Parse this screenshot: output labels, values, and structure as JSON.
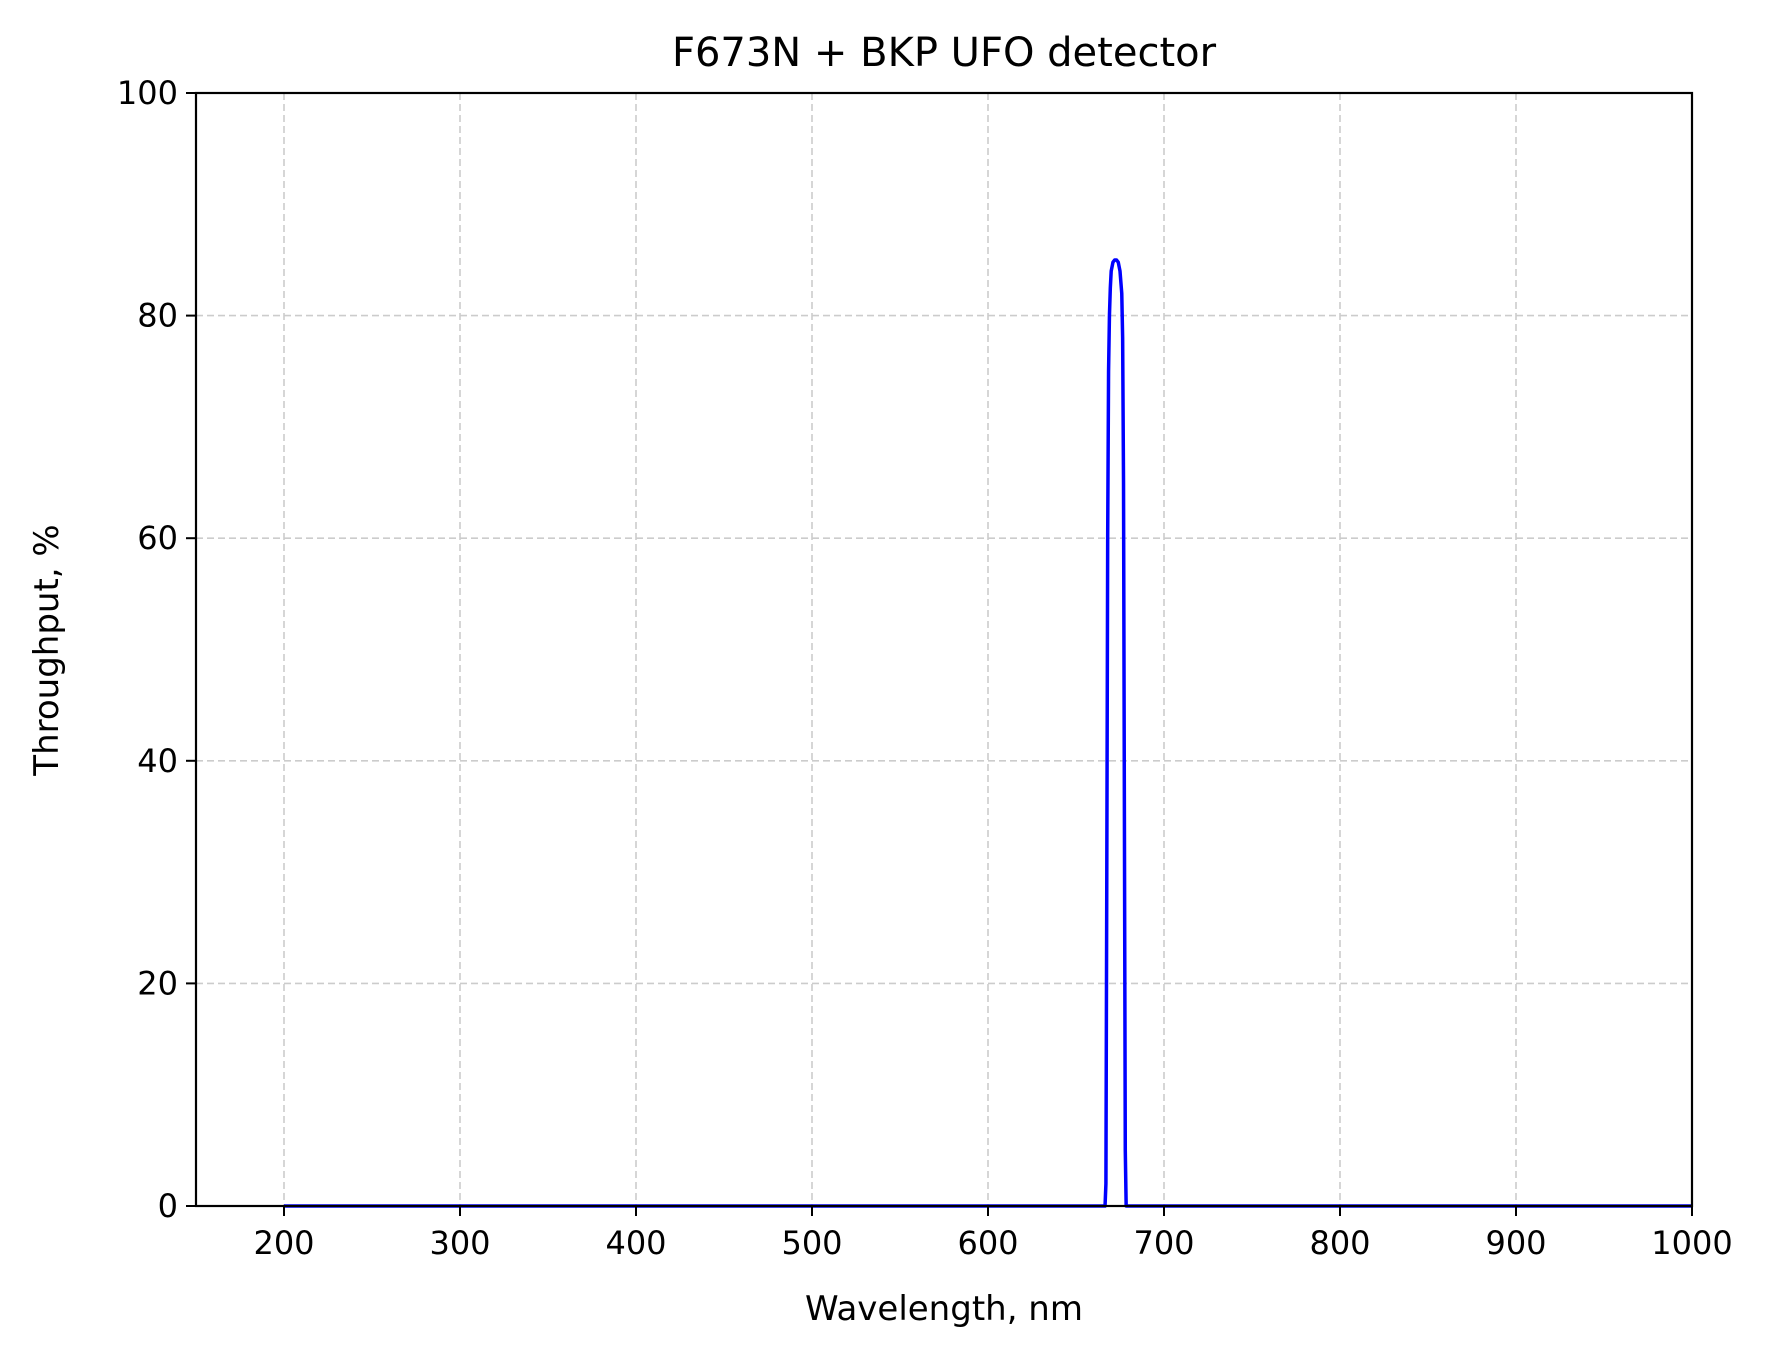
{
  "chart_data": {
    "type": "line",
    "title": "F673N + BKP UFO detector",
    "xlabel": "Wavelength, nm",
    "ylabel": "Throughput, %",
    "xlim": [
      150,
      1000
    ],
    "ylim": [
      0,
      100
    ],
    "xticks": [
      200,
      300,
      400,
      500,
      600,
      700,
      800,
      900,
      1000
    ],
    "yticks": [
      0,
      20,
      40,
      60,
      80,
      100
    ],
    "grid": true,
    "legend": "none",
    "line_color": "#0000ff",
    "grid_color": "#cccccc",
    "series": [
      {
        "x": [
          200,
          300,
          400,
          500,
          600,
          660,
          665,
          666.5,
          667,
          667.5,
          668,
          668.5,
          669,
          669.5,
          670,
          671,
          672,
          673,
          674,
          675,
          676,
          676.5,
          677,
          677.5,
          678,
          678.5,
          679,
          680,
          690,
          700,
          800,
          900,
          1000
        ],
        "y": [
          0,
          0,
          0,
          0,
          0,
          0,
          0,
          0,
          2,
          30,
          60,
          75,
          80,
          82.5,
          84,
          84.8,
          85,
          85,
          84.8,
          84,
          82,
          78,
          65,
          35,
          5,
          0,
          0,
          0,
          0,
          0,
          0,
          0,
          0
        ]
      }
    ]
  }
}
